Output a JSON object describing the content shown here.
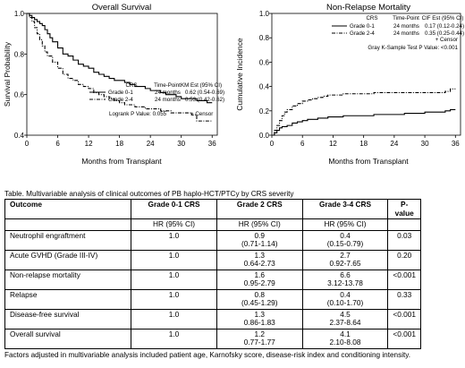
{
  "charts": [
    {
      "title": "Overall Survival",
      "ylabel": "Survival Probability",
      "xlabel": "Months from Transplant",
      "legend": {
        "headers": [
          "CRS",
          "Time-Point",
          "KM Est (95% CI)"
        ],
        "rows": [
          {
            "group": "Grade 0-1",
            "time": "24 months",
            "est": "0.62 (0.54-0.69)"
          },
          {
            "group": "Grade 2-4",
            "time": "24 months",
            "est": "0.53 (0.42-0.62)"
          }
        ],
        "censor": "+ Censor",
        "pvalue": "Logrank P Value: 0.055"
      }
    },
    {
      "title": "Non-Relapse Mortality",
      "ylabel": "Cumulative Incidence",
      "xlabel": "Months from Transplant",
      "legend": {
        "headers": [
          "CRS",
          "Time-Point",
          "CIF Est (95% CI)"
        ],
        "rows": [
          {
            "group": "Grade 0-1",
            "time": "24 months",
            "est": "0.17 (0.12-0.24)"
          },
          {
            "group": "Grade 2-4",
            "time": "24 months",
            "est": "0.35 (0.25-0.44)"
          }
        ],
        "censor": "+ Censor",
        "pvalue": "Gray K-Sample Test P Value: <0.001"
      }
    }
  ],
  "chart_data": [
    {
      "type": "line",
      "title": "Overall Survival",
      "xlabel": "Months from Transplant",
      "ylabel": "Survival Probability",
      "xlim": [
        0,
        37
      ],
      "ylim": [
        0.4,
        1.0
      ],
      "xticks": [
        0,
        6,
        12,
        18,
        24,
        30,
        36
      ],
      "yticks": [
        0.4,
        0.6,
        0.8,
        1.0
      ],
      "yticklabels": [
        "0.4",
        "0.6",
        "0.8",
        "1.0"
      ],
      "series": [
        {
          "name": "Grade 0-1",
          "style": "solid",
          "step": true,
          "x": [
            0,
            0.5,
            1,
            1.5,
            2,
            2.5,
            3,
            3.5,
            4,
            4.5,
            5,
            6,
            7,
            8,
            9,
            10,
            11,
            12,
            13,
            14,
            15,
            16,
            17,
            18,
            19,
            20,
            21,
            22,
            23,
            24,
            25,
            26,
            27,
            28,
            29,
            30,
            31,
            32,
            33,
            34,
            35,
            36
          ],
          "y": [
            1.0,
            0.99,
            0.98,
            0.97,
            0.96,
            0.95,
            0.94,
            0.92,
            0.9,
            0.88,
            0.86,
            0.83,
            0.8,
            0.79,
            0.77,
            0.75,
            0.74,
            0.73,
            0.71,
            0.7,
            0.69,
            0.68,
            0.67,
            0.67,
            0.66,
            0.65,
            0.64,
            0.64,
            0.63,
            0.62,
            0.62,
            0.61,
            0.6,
            0.6,
            0.59,
            0.58,
            0.58,
            0.58,
            0.57,
            0.57,
            0.56,
            0.56
          ]
        },
        {
          "name": "Grade 2-4",
          "style": "dash-dot",
          "step": true,
          "x": [
            0,
            0.5,
            1,
            1.5,
            2,
            2.5,
            3,
            3.5,
            4,
            5,
            6,
            7,
            8,
            9,
            10,
            11,
            12,
            13,
            14,
            15,
            16,
            17,
            18,
            19,
            20,
            21,
            22,
            23,
            24,
            25,
            26,
            27,
            28,
            30,
            32,
            33,
            34,
            35,
            36
          ],
          "y": [
            1.0,
            0.98,
            0.96,
            0.93,
            0.9,
            0.87,
            0.84,
            0.81,
            0.79,
            0.76,
            0.73,
            0.7,
            0.68,
            0.67,
            0.65,
            0.64,
            0.63,
            0.61,
            0.6,
            0.59,
            0.58,
            0.57,
            0.56,
            0.55,
            0.55,
            0.54,
            0.54,
            0.53,
            0.53,
            0.53,
            0.52,
            0.52,
            0.51,
            0.51,
            0.5,
            0.47,
            0.47,
            0.47,
            0.47
          ]
        }
      ]
    },
    {
      "type": "line",
      "title": "Non-Relapse Mortality",
      "xlabel": "Months from Transplant",
      "ylabel": "Cumulative Incidence",
      "xlim": [
        0,
        37
      ],
      "ylim": [
        0.0,
        1.0
      ],
      "xticks": [
        0,
        6,
        12,
        18,
        24,
        30,
        36
      ],
      "yticks": [
        0.0,
        0.2,
        0.4,
        0.6,
        0.8,
        1.0
      ],
      "yticklabels": [
        "0.0",
        "0.2",
        "0.4",
        "0.6",
        "0.8",
        "1.0"
      ],
      "series": [
        {
          "name": "Grade 0-1",
          "style": "solid",
          "step": true,
          "x": [
            0,
            0.5,
            1,
            1.5,
            2,
            3,
            4,
            5,
            6,
            7,
            8,
            9,
            10,
            11,
            12,
            13,
            14,
            15,
            16,
            18,
            20,
            22,
            24,
            26,
            28,
            30,
            32,
            34,
            35,
            36
          ],
          "y": [
            0.0,
            0.02,
            0.04,
            0.06,
            0.07,
            0.08,
            0.1,
            0.11,
            0.12,
            0.13,
            0.13,
            0.14,
            0.14,
            0.15,
            0.15,
            0.15,
            0.16,
            0.16,
            0.16,
            0.16,
            0.17,
            0.17,
            0.17,
            0.18,
            0.18,
            0.19,
            0.19,
            0.2,
            0.21,
            0.21
          ]
        },
        {
          "name": "Grade 2-4",
          "style": "dash-dot",
          "step": true,
          "x": [
            0,
            0.5,
            1,
            1.5,
            2,
            2.5,
            3,
            4,
            5,
            6,
            7,
            8,
            9,
            10,
            11,
            12,
            14,
            16,
            18,
            20,
            22,
            24,
            26,
            28,
            30,
            32,
            34,
            35,
            36
          ],
          "y": [
            0.0,
            0.04,
            0.08,
            0.12,
            0.16,
            0.19,
            0.21,
            0.24,
            0.26,
            0.28,
            0.29,
            0.3,
            0.31,
            0.32,
            0.33,
            0.33,
            0.34,
            0.34,
            0.34,
            0.35,
            0.35,
            0.35,
            0.35,
            0.35,
            0.35,
            0.35,
            0.36,
            0.38,
            0.38
          ]
        }
      ]
    }
  ],
  "table": {
    "caption": "Table. Multivariable analysis of clinical outcomes of PB haplo-HCT/PTCy by CRS severity",
    "headers": [
      "Outcome",
      "Grade 0-1 CRS",
      "Grade 2 CRS",
      "Grade 3-4 CRS",
      "P-value"
    ],
    "subheaders": [
      "",
      "HR (95% CI)",
      "HR (95% CI)",
      "HR (95% CI)",
      ""
    ],
    "rows": [
      {
        "outcome": "Neutrophil engraftment",
        "g01": "1.0",
        "g2": [
          "0.9",
          "(0.71-1.14)"
        ],
        "g34": [
          "0.4",
          "(0.15-0.79)"
        ],
        "p": "0.03"
      },
      {
        "outcome": "Acute GVHD (Grade III-IV)",
        "g01": "1.0",
        "g2": [
          "1.3",
          "0.64-2.73"
        ],
        "g34": [
          "2.7",
          "0.92-7.65"
        ],
        "p": "0.20"
      },
      {
        "outcome": "Non-relapse mortality",
        "g01": "1.0",
        "g2": [
          "1.6",
          "0.95-2.79"
        ],
        "g34": [
          "6.6",
          "3.12-13.78"
        ],
        "p": "<0.001"
      },
      {
        "outcome": "Relapse",
        "g01": "1.0",
        "g2": [
          "0.8",
          "(0.45-1.29)"
        ],
        "g34": [
          "0.4",
          "(0.10-1.70)"
        ],
        "p": "0.33"
      },
      {
        "outcome": "Disease-free survival",
        "g01": "1.0",
        "g2": [
          "1.3",
          "0.86-1.83"
        ],
        "g34": [
          "4.5",
          "2.37-8.64"
        ],
        "p": "<0.001"
      },
      {
        "outcome": "Overall survival",
        "g01": "1.0",
        "g2": [
          "1.2",
          "0.77-1.77"
        ],
        "g34": [
          "4.1",
          "2.10-8.08"
        ],
        "p": "<0.001"
      }
    ],
    "footnote": "Factors adjusted in multivariable analysis included patient age, Karnofsky score, disease-risk index and conditioning intensity."
  }
}
